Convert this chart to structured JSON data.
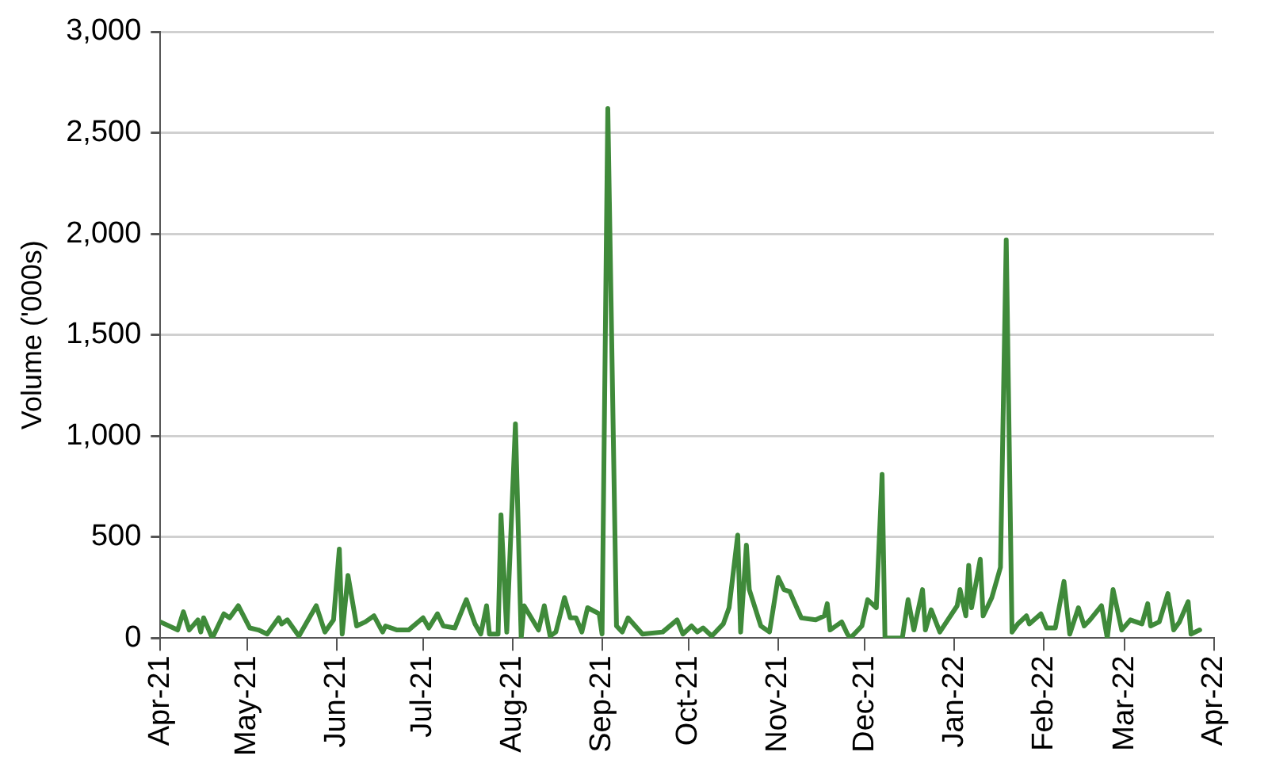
{
  "chart_data": {
    "type": "line",
    "ylabel": "Volume ('000s)",
    "x": [
      "2021-04-01",
      "2021-04-07",
      "2021-04-09",
      "2021-04-11",
      "2021-04-14",
      "2021-04-15",
      "2021-04-16",
      "2021-04-19",
      "2021-04-23",
      "2021-04-25",
      "2021-04-28",
      "2021-05-02",
      "2021-05-05",
      "2021-05-08",
      "2021-05-12",
      "2021-05-13",
      "2021-05-15",
      "2021-05-19",
      "2021-05-25",
      "2021-05-28",
      "2021-05-31",
      "2021-06-02",
      "2021-06-03",
      "2021-06-05",
      "2021-06-08",
      "2021-06-11",
      "2021-06-14",
      "2021-06-17",
      "2021-06-18",
      "2021-06-22",
      "2021-06-26",
      "2021-07-01",
      "2021-07-03",
      "2021-07-06",
      "2021-07-08",
      "2021-07-12",
      "2021-07-16",
      "2021-07-19",
      "2021-07-21",
      "2021-07-23",
      "2021-07-24",
      "2021-07-27",
      "2021-07-28",
      "2021-07-30",
      "2021-08-02",
      "2021-08-04",
      "2021-08-05",
      "2021-08-10",
      "2021-08-12",
      "2021-08-14",
      "2021-08-16",
      "2021-08-19",
      "2021-08-21",
      "2021-08-23",
      "2021-08-25",
      "2021-08-27",
      "2021-08-31",
      "2021-09-01",
      "2021-09-03",
      "2021-09-06",
      "2021-09-08",
      "2021-09-10",
      "2021-09-15",
      "2021-09-22",
      "2021-09-27",
      "2021-09-29",
      "2021-10-02",
      "2021-10-04",
      "2021-10-06",
      "2021-10-09",
      "2021-10-13",
      "2021-10-15",
      "2021-10-18",
      "2021-10-19",
      "2021-10-21",
      "2021-10-22",
      "2021-10-26",
      "2021-10-29",
      "2021-11-01",
      "2021-11-03",
      "2021-11-05",
      "2021-11-09",
      "2021-11-14",
      "2021-11-17",
      "2021-11-18",
      "2021-11-19",
      "2021-11-23",
      "2021-11-25",
      "2021-11-26",
      "2021-11-30",
      "2021-12-02",
      "2021-12-05",
      "2021-12-07",
      "2021-12-08",
      "2021-12-14",
      "2021-12-16",
      "2021-12-18",
      "2021-12-21",
      "2021-12-22",
      "2021-12-24",
      "2021-12-27",
      "2022-01-02",
      "2022-01-03",
      "2022-01-05",
      "2022-01-06",
      "2022-01-07",
      "2022-01-10",
      "2022-01-11",
      "2022-01-14",
      "2022-01-17",
      "2022-01-19",
      "2022-01-21",
      "2022-01-23",
      "2022-01-26",
      "2022-01-27",
      "2022-01-31",
      "2022-02-02",
      "2022-02-05",
      "2022-02-08",
      "2022-02-10",
      "2022-02-13",
      "2022-02-15",
      "2022-02-17",
      "2022-02-21",
      "2022-02-23",
      "2022-02-25",
      "2022-02-28",
      "2022-03-03",
      "2022-03-07",
      "2022-03-09",
      "2022-03-10",
      "2022-03-13",
      "2022-03-16",
      "2022-03-18",
      "2022-03-20",
      "2022-03-23",
      "2022-03-24",
      "2022-03-27"
    ],
    "series": [
      {
        "color": "#3f8a3a",
        "values": [
          80,
          40,
          130,
          40,
          90,
          30,
          100,
          0,
          120,
          100,
          160,
          50,
          40,
          20,
          100,
          70,
          90,
          10,
          160,
          30,
          90,
          440,
          20,
          310,
          60,
          80,
          110,
          30,
          60,
          40,
          40,
          100,
          50,
          120,
          60,
          50,
          190,
          70,
          20,
          160,
          20,
          20,
          610,
          30,
          1060,
          0,
          160,
          40,
          160,
          10,
          30,
          200,
          100,
          100,
          30,
          150,
          120,
          20,
          2620,
          60,
          30,
          100,
          20,
          30,
          90,
          20,
          60,
          30,
          50,
          10,
          70,
          150,
          510,
          30,
          460,
          240,
          60,
          30,
          300,
          240,
          230,
          100,
          90,
          110,
          170,
          40,
          80,
          20,
          0,
          60,
          190,
          150,
          810,
          0,
          0,
          190,
          40,
          240,
          40,
          140,
          30,
          160,
          240,
          110,
          360,
          150,
          390,
          110,
          200,
          350,
          1970,
          30,
          70,
          110,
          70,
          120,
          50,
          50,
          280,
          20,
          150,
          60,
          90,
          160,
          0,
          240,
          40,
          90,
          70,
          170,
          60,
          80,
          220,
          40,
          80,
          180,
          20,
          40
        ]
      }
    ],
    "xlim": [
      "2021-04-01",
      "2022-04-01"
    ],
    "xticks": [
      {
        "value": "2021-04-01",
        "label": "Apr-21"
      },
      {
        "value": "2021-05-01",
        "label": "May-21"
      },
      {
        "value": "2021-06-01",
        "label": "Jun-21"
      },
      {
        "value": "2021-07-01",
        "label": "Jul-21"
      },
      {
        "value": "2021-08-01",
        "label": "Aug-21"
      },
      {
        "value": "2021-09-01",
        "label": "Sep-21"
      },
      {
        "value": "2021-10-01",
        "label": "Oct-21"
      },
      {
        "value": "2021-11-01",
        "label": "Nov-21"
      },
      {
        "value": "2021-12-01",
        "label": "Dec-21"
      },
      {
        "value": "2022-01-01",
        "label": "Jan-22"
      },
      {
        "value": "2022-02-01",
        "label": "Feb-22"
      },
      {
        "value": "2022-03-01",
        "label": "Mar-22"
      },
      {
        "value": "2022-04-01",
        "label": "Apr-22"
      }
    ],
    "ylim": [
      0,
      3000
    ],
    "yticks": [
      0,
      {
        "value": 500,
        "label": "500"
      },
      {
        "value": 1000,
        "label": "1,000"
      },
      {
        "value": 1500,
        "label": "1,500"
      },
      {
        "value": 2000,
        "label": "2,000"
      },
      {
        "value": 2500,
        "label": "2,500"
      },
      {
        "value": 3000,
        "label": "3,000"
      }
    ],
    "grid": "y",
    "legend": false,
    "marker": "none",
    "line_style": "solid"
  }
}
